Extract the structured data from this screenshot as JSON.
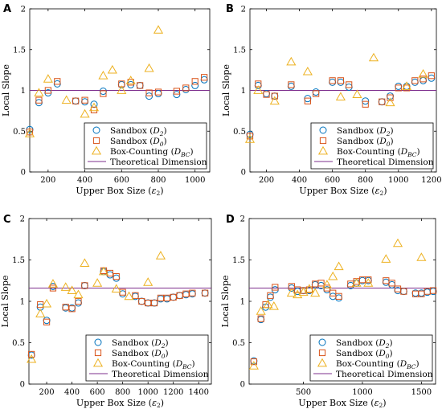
{
  "colors": {
    "sandbox_d2": "#0072BD",
    "sandbox_d0": "#D95319",
    "box_counting": "#EDB120",
    "theoretical": "#7E2F8E"
  },
  "chart_data": [
    {
      "panel": "A",
      "type": "scatter",
      "xlabel": "Upper Box Size (ε₂)",
      "ylabel": "Local Slope",
      "xlim": [
        100,
        1080
      ],
      "ylim": [
        0,
        2
      ],
      "xticks": [
        200,
        400,
        600,
        800,
        1000
      ],
      "yticks": [
        0,
        0.5,
        1,
        1.5,
        2
      ],
      "legend_position": "lower-right",
      "theoretical": 1.0,
      "series": [
        {
          "name": "Sandbox (D2)",
          "marker": "circle",
          "x": [
            100,
            150,
            200,
            250,
            350,
            400,
            450,
            500,
            600,
            650,
            700,
            750,
            800,
            900,
            950,
            1000,
            1050
          ],
          "y": [
            0.52,
            0.85,
            0.97,
            1.08,
            0.87,
            0.86,
            0.83,
            0.99,
            1.07,
            1.07,
            1.06,
            0.93,
            0.96,
            0.95,
            1.01,
            1.06,
            1.13
          ]
        },
        {
          "name": "Sandbox (D0)",
          "marker": "square",
          "x": [
            100,
            150,
            200,
            250,
            350,
            400,
            450,
            500,
            600,
            650,
            700,
            750,
            800,
            900,
            950,
            1000,
            1050
          ],
          "y": [
            0.49,
            0.88,
            1.0,
            1.11,
            0.87,
            0.88,
            0.76,
            0.96,
            1.08,
            1.1,
            1.06,
            0.97,
            0.98,
            0.99,
            1.03,
            1.11,
            1.16
          ]
        },
        {
          "name": "Box-Counting (DBC)",
          "marker": "triangle",
          "x": [
            100,
            150,
            200,
            300,
            400,
            450,
            500,
            550,
            600,
            650,
            750,
            800
          ],
          "y": [
            0.47,
            0.97,
            1.14,
            0.88,
            0.71,
            0.79,
            1.18,
            1.25,
            1.0,
            1.12,
            1.27,
            1.74
          ]
        }
      ]
    },
    {
      "panel": "B",
      "type": "scatter",
      "xlabel": "Upper Box Size (ε₂)",
      "ylabel": "Local Slope",
      "xlim": [
        100,
        1230
      ],
      "ylim": [
        0,
        2
      ],
      "xticks": [
        200,
        400,
        600,
        800,
        1000,
        1200
      ],
      "yticks": [
        0,
        0.5,
        1,
        1.5,
        2
      ],
      "legend_position": "lower-right",
      "theoretical": 1.0,
      "series": [
        {
          "name": "Sandbox (D2)",
          "marker": "circle",
          "x": [
            100,
            150,
            200,
            250,
            350,
            450,
            500,
            600,
            650,
            700,
            800,
            900,
            950,
            1000,
            1050,
            1100,
            1150,
            1200
          ],
          "y": [
            0.46,
            1.06,
            0.96,
            0.93,
            1.05,
            0.9,
            0.98,
            1.1,
            1.1,
            1.04,
            0.87,
            0.86,
            0.93,
            1.05,
            1.05,
            1.1,
            1.12,
            1.15
          ]
        },
        {
          "name": "Sandbox (D0)",
          "marker": "square",
          "x": [
            100,
            150,
            200,
            250,
            350,
            450,
            500,
            600,
            650,
            700,
            800,
            900,
            950,
            1000,
            1050,
            1100,
            1150,
            1200
          ],
          "y": [
            0.44,
            1.08,
            0.95,
            0.93,
            1.07,
            0.87,
            0.96,
            1.12,
            1.12,
            1.07,
            0.83,
            0.86,
            0.91,
            1.03,
            1.03,
            1.12,
            1.14,
            1.18
          ]
        },
        {
          "name": "Box-Counting (DBC)",
          "marker": "triangle",
          "x": [
            100,
            150,
            250,
            350,
            450,
            650,
            750,
            850,
            950,
            1050,
            1150
          ],
          "y": [
            0.4,
            1.0,
            0.87,
            1.35,
            1.23,
            0.92,
            0.95,
            1.4,
            0.85,
            1.05,
            1.2
          ]
        }
      ]
    },
    {
      "panel": "C",
      "type": "scatter",
      "xlabel": "Upper Box Size (ε₂)",
      "ylabel": "Local Slope",
      "xlim": [
        60,
        1500
      ],
      "ylim": [
        0,
        2
      ],
      "xticks": [
        200,
        400,
        600,
        800,
        1000,
        1200,
        1400
      ],
      "yticks": [
        0,
        0.5,
        1,
        1.5,
        2
      ],
      "legend_position": "lower-right",
      "theoretical": 1.16,
      "series": [
        {
          "name": "Sandbox (D2)",
          "marker": "circle",
          "x": [
            80,
            150,
            200,
            250,
            350,
            400,
            450,
            500,
            650,
            700,
            750,
            800,
            900,
            950,
            1000,
            1050,
            1100,
            1150,
            1200,
            1250,
            1300,
            1350,
            1450
          ],
          "y": [
            0.35,
            0.93,
            0.77,
            1.18,
            0.92,
            0.92,
            0.98,
            1.19,
            1.36,
            1.32,
            1.28,
            1.09,
            1.06,
            1.0,
            0.98,
            0.98,
            1.03,
            1.03,
            1.05,
            1.07,
            1.08,
            1.09,
            1.1
          ]
        },
        {
          "name": "Sandbox (D0)",
          "marker": "square",
          "x": [
            80,
            150,
            200,
            250,
            350,
            400,
            450,
            500,
            650,
            700,
            750,
            800,
            900,
            950,
            1000,
            1050,
            1100,
            1150,
            1200,
            1250,
            1300,
            1350,
            1450
          ],
          "y": [
            0.36,
            0.96,
            0.75,
            1.16,
            0.93,
            0.91,
            1.0,
            1.19,
            1.37,
            1.34,
            1.3,
            1.11,
            1.07,
            1.0,
            0.98,
            0.98,
            1.04,
            1.04,
            1.05,
            1.07,
            1.09,
            1.1,
            1.1
          ]
        },
        {
          "name": "Box-Counting (DBC)",
          "marker": "triangle",
          "x": [
            80,
            150,
            200,
            250,
            350,
            400,
            450,
            500,
            600,
            650,
            750,
            850,
            1000,
            1100
          ],
          "y": [
            0.3,
            0.85,
            0.97,
            1.21,
            1.17,
            1.13,
            1.08,
            1.46,
            1.22,
            1.36,
            1.15,
            1.06,
            1.23,
            1.55
          ]
        }
      ]
    },
    {
      "panel": "D",
      "type": "scatter",
      "xlabel": "Upper Box Size (ε₂)",
      "ylabel": "Local Slope",
      "xlim": [
        40,
        1620
      ],
      "ylim": [
        0,
        2
      ],
      "xticks": [
        500,
        1000,
        1500
      ],
      "yticks": [
        0,
        0.5,
        1,
        1.5,
        2
      ],
      "legend_position": "lower-right",
      "theoretical": 1.16,
      "series": [
        {
          "name": "Sandbox (D2)",
          "marker": "circle",
          "x": [
            80,
            140,
            180,
            220,
            260,
            400,
            450,
            500,
            550,
            600,
            650,
            700,
            750,
            800,
            900,
            950,
            1000,
            1050,
            1200,
            1250,
            1300,
            1350,
            1450,
            1500,
            1550,
            1600
          ],
          "y": [
            0.28,
            0.78,
            0.93,
            1.05,
            1.14,
            1.16,
            1.12,
            1.13,
            1.13,
            1.2,
            1.19,
            1.14,
            1.06,
            1.04,
            1.19,
            1.22,
            1.25,
            1.25,
            1.23,
            1.2,
            1.13,
            1.12,
            1.1,
            1.1,
            1.11,
            1.12
          ]
        },
        {
          "name": "Sandbox (D0)",
          "marker": "square",
          "x": [
            80,
            140,
            180,
            220,
            260,
            400,
            450,
            500,
            550,
            600,
            650,
            700,
            750,
            800,
            900,
            950,
            1000,
            1050,
            1200,
            1250,
            1300,
            1350,
            1450,
            1500,
            1550,
            1600
          ],
          "y": [
            0.27,
            0.79,
            0.96,
            1.07,
            1.17,
            1.18,
            1.14,
            1.13,
            1.14,
            1.21,
            1.22,
            1.16,
            1.1,
            1.06,
            1.21,
            1.24,
            1.26,
            1.26,
            1.25,
            1.22,
            1.15,
            1.12,
            1.09,
            1.09,
            1.12,
            1.13
          ]
        },
        {
          "name": "Box-Counting (DBC)",
          "marker": "triangle",
          "x": [
            80,
            140,
            200,
            250,
            400,
            450,
            500,
            550,
            600,
            700,
            750,
            800,
            950,
            1050,
            1200,
            1300,
            1500
          ],
          "y": [
            0.22,
            0.88,
            0.96,
            0.94,
            1.1,
            1.08,
            1.11,
            1.15,
            1.1,
            1.2,
            1.3,
            1.42,
            1.22,
            1.22,
            1.51,
            1.7,
            1.53
          ]
        }
      ]
    }
  ],
  "legend": {
    "labels": [
      {
        "name": "Sandbox",
        "sub": "2"
      },
      {
        "name": "Sandbox",
        "sub": "0"
      },
      {
        "name": "Box-Counting",
        "sub": "BC"
      }
    ],
    "theoretical_label": "Theoretical Dimension"
  }
}
